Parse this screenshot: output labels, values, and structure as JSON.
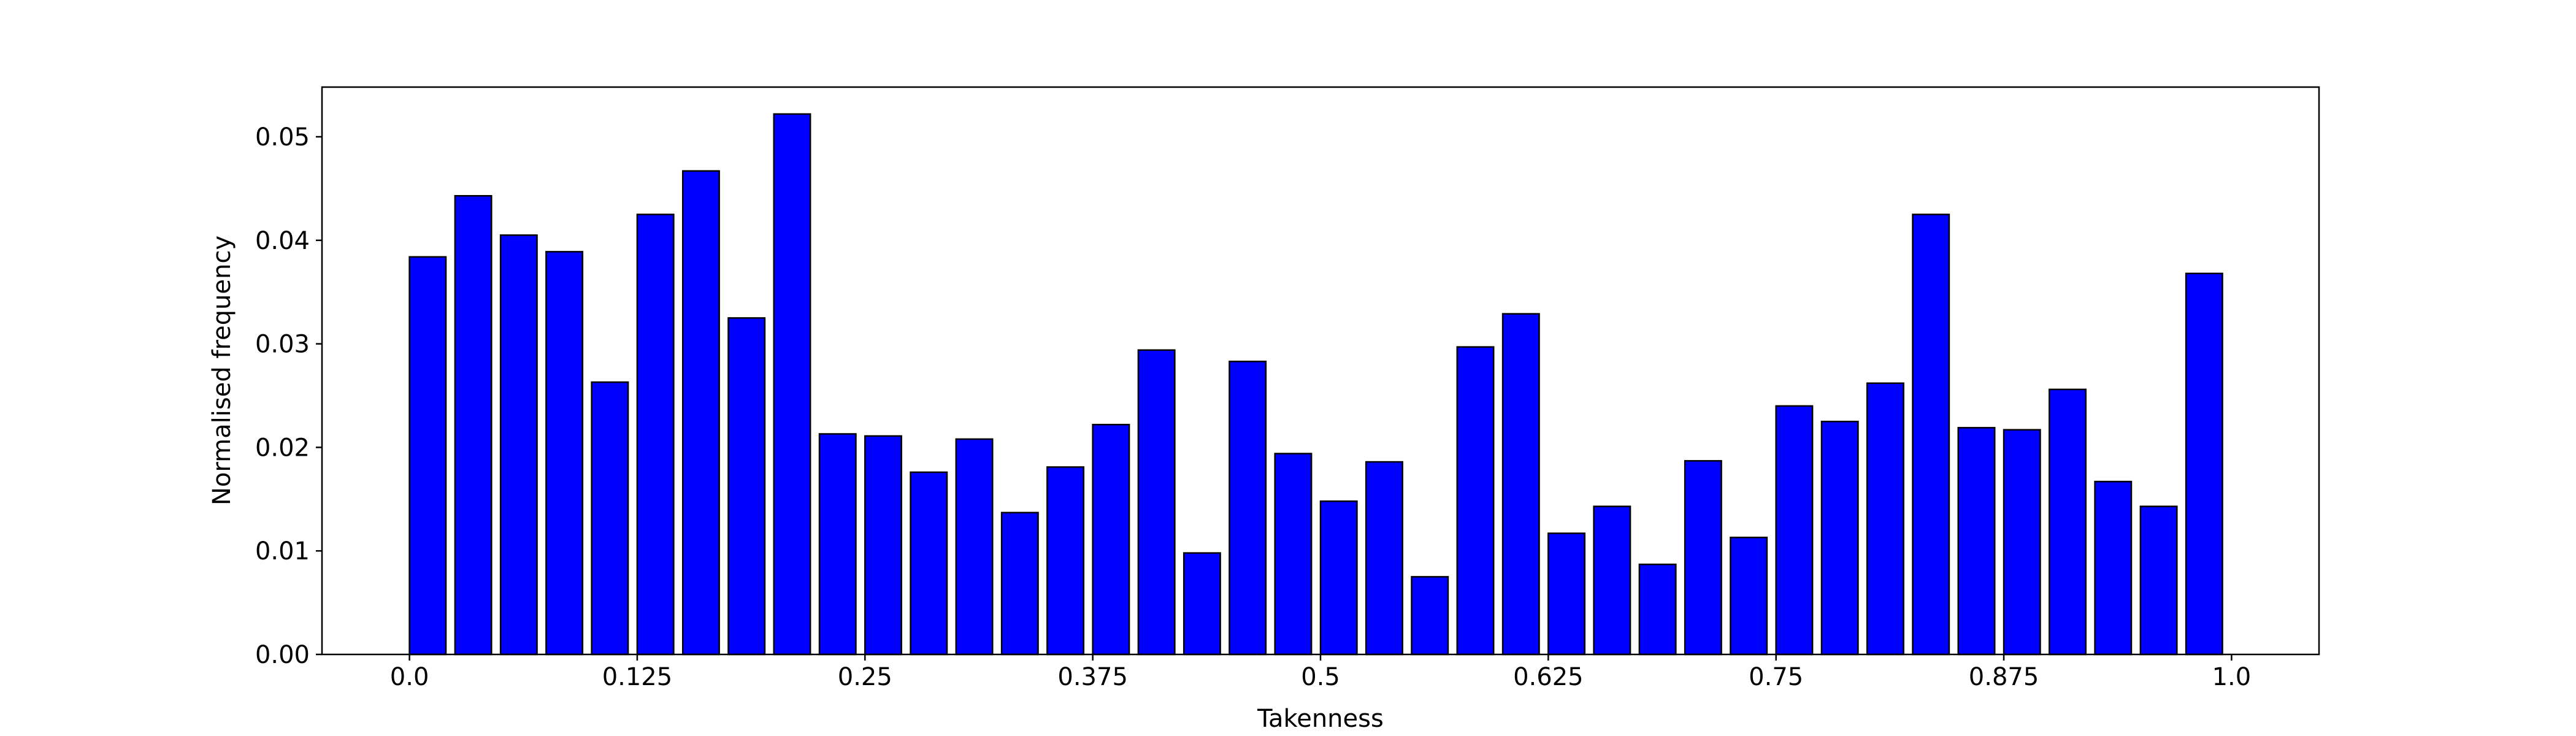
{
  "chart_data": {
    "type": "bar",
    "xlabel": "Takenness",
    "ylabel": "Normalised frequency",
    "x": [
      0,
      0.025,
      0.05,
      0.075,
      0.1,
      0.125,
      0.15,
      0.175,
      0.2,
      0.225,
      0.25,
      0.275,
      0.3,
      0.325,
      0.35,
      0.375,
      0.4,
      0.425,
      0.45,
      0.475,
      0.5,
      0.525,
      0.55,
      0.575,
      0.6,
      0.625,
      0.65,
      0.675,
      0.7,
      0.725,
      0.75,
      0.775,
      0.8,
      0.825,
      0.85,
      0.875,
      0.9,
      0.925,
      0.95,
      0.975
    ],
    "values": [
      0.0384,
      0.0443,
      0.0405,
      0.0389,
      0.0263,
      0.0425,
      0.0467,
      0.0325,
      0.0522,
      0.0213,
      0.0211,
      0.0176,
      0.0208,
      0.0137,
      0.0181,
      0.0222,
      0.0294,
      0.0098,
      0.0283,
      0.0194,
      0.0148,
      0.0186,
      0.0075,
      0.0297,
      0.0329,
      0.0117,
      0.0143,
      0.0087,
      0.0187,
      0.0113,
      0.024,
      0.0225,
      0.0262,
      0.0425,
      0.0219,
      0.0217,
      0.0256,
      0.0167,
      0.0143,
      0.0368
    ],
    "color": "#0000ff",
    "xlim": [
      -0.048,
      1.048
    ],
    "xticks": [
      {
        "value": 0,
        "label": "0.0"
      },
      0.125,
      0.25,
      0.375,
      0.5,
      0.625,
      0.75,
      0.875,
      {
        "value": 1,
        "label": "1.0"
      }
    ],
    "ylim": [
      0,
      0.0548
    ],
    "yticks": [
      {
        "value": 0,
        "label": "0.00"
      },
      0.01,
      0.02,
      0.03,
      0.04,
      0.05
    ],
    "grid": false
  }
}
